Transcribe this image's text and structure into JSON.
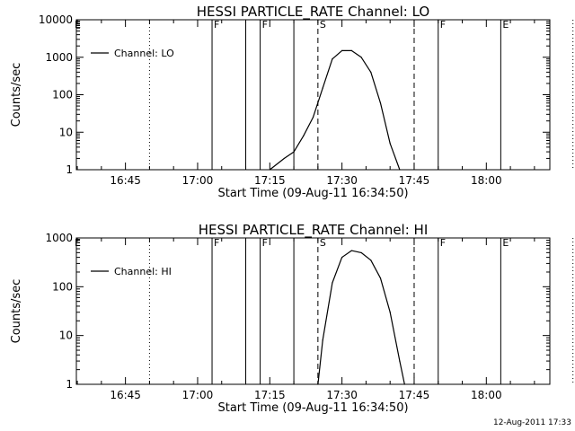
{
  "stamp": "12-Aug-2011 17:33",
  "chart_data": [
    {
      "type": "line",
      "title": "HESSI PARTICLE_RATE Channel: LO",
      "xlabel": "Start Time (09-Aug-11 16:34:50)",
      "ylabel": "Counts/sec",
      "yscale": "log",
      "xlim": [
        16.58,
        18.22
      ],
      "ylim": [
        1,
        10000
      ],
      "xticks": [
        "16:45",
        "17:00",
        "17:15",
        "17:30",
        "17:45",
        "18:00"
      ],
      "yticks": [
        "1",
        "10",
        "100",
        "1000",
        "10000"
      ],
      "legend": {
        "label": "Channel: LO",
        "position": "top-left"
      },
      "series": [
        {
          "name": "Channel: LO",
          "x": [
            "17:15",
            "17:18",
            "17:20",
            "17:22",
            "17:24",
            "17:26",
            "17:28",
            "17:30",
            "17:32",
            "17:34",
            "17:36",
            "17:38",
            "17:40",
            "17:42"
          ],
          "y": [
            1,
            2,
            3,
            8,
            25,
            150,
            900,
            1500,
            1500,
            1000,
            400,
            60,
            5,
            1
          ]
        }
      ],
      "events": [
        {
          "time": "16:50",
          "style": "dotted",
          "label": ""
        },
        {
          "time": "17:03",
          "style": "solid",
          "label": "F"
        },
        {
          "time": "17:10",
          "style": "solid",
          "label": ""
        },
        {
          "time": "17:13",
          "style": "solid",
          "label": "F"
        },
        {
          "time": "17:20",
          "style": "solid",
          "label": ""
        },
        {
          "time": "17:25",
          "style": "dashed",
          "label": "S"
        },
        {
          "time": "17:45",
          "style": "dashed",
          "label": ""
        },
        {
          "time": "17:50",
          "style": "solid",
          "label": "F"
        },
        {
          "time": "18:03",
          "style": "solid",
          "label": "E"
        },
        {
          "time": "18:18",
          "style": "dotted",
          "label": ""
        }
      ],
      "top_label_E": "E"
    },
    {
      "type": "line",
      "title": "HESSI PARTICLE_RATE Channel: HI",
      "xlabel": "Start Time (09-Aug-11 16:34:50)",
      "ylabel": "Counts/sec",
      "yscale": "log",
      "xlim": [
        16.58,
        18.22
      ],
      "ylim": [
        1,
        1000
      ],
      "xticks": [
        "16:45",
        "17:00",
        "17:15",
        "17:30",
        "17:45",
        "18:00"
      ],
      "yticks": [
        "1",
        "10",
        "100",
        "1000"
      ],
      "legend": {
        "label": "Channel: HI",
        "position": "top-left"
      },
      "series": [
        {
          "name": "Channel: HI",
          "x": [
            "17:25",
            "17:26",
            "17:28",
            "17:30",
            "17:32",
            "17:34",
            "17:36",
            "17:38",
            "17:40",
            "17:42",
            "17:43"
          ],
          "y": [
            1,
            8,
            120,
            400,
            550,
            500,
            350,
            150,
            30,
            3,
            1
          ]
        }
      ],
      "events": [
        {
          "time": "16:50",
          "style": "dotted",
          "label": ""
        },
        {
          "time": "17:03",
          "style": "solid",
          "label": "F"
        },
        {
          "time": "17:10",
          "style": "solid",
          "label": ""
        },
        {
          "time": "17:13",
          "style": "solid",
          "label": "F"
        },
        {
          "time": "17:20",
          "style": "solid",
          "label": ""
        },
        {
          "time": "17:25",
          "style": "dashed",
          "label": "S"
        },
        {
          "time": "17:45",
          "style": "dashed",
          "label": ""
        },
        {
          "time": "17:50",
          "style": "solid",
          "label": "F"
        },
        {
          "time": "18:03",
          "style": "solid",
          "label": "E"
        },
        {
          "time": "18:18",
          "style": "dotted",
          "label": ""
        }
      ],
      "top_label_E": "E"
    }
  ]
}
